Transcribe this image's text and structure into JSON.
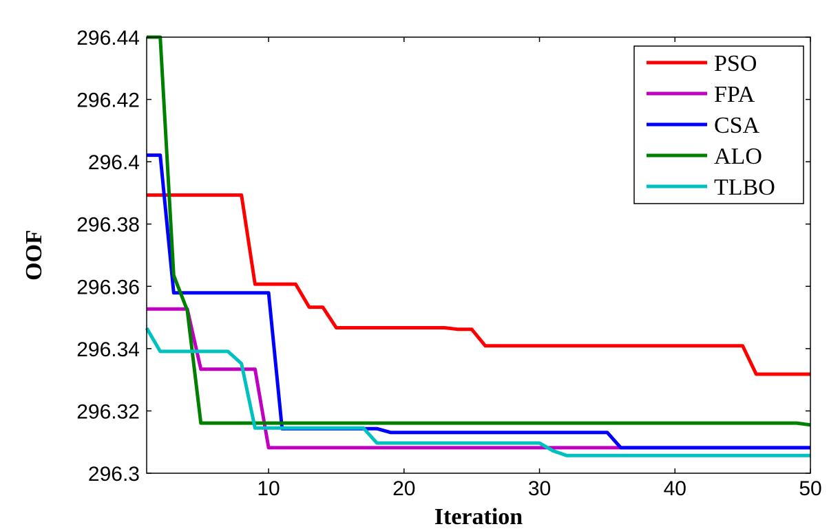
{
  "chart_data": {
    "type": "line",
    "title": "",
    "xlabel": "Iteration",
    "ylabel": "OOF",
    "xlim": [
      1,
      50
    ],
    "ylim": [
      296.3,
      296.44
    ],
    "xticks": [
      10,
      20,
      30,
      40,
      50
    ],
    "xtick_labels": [
      "10",
      "20",
      "30",
      "40",
      "50"
    ],
    "yticks": [
      296.3,
      296.32,
      296.34,
      296.36,
      296.38,
      296.4,
      296.42,
      296.44
    ],
    "ytick_labels": [
      "296.3",
      "296.32",
      "296.34",
      "296.36",
      "296.38",
      "296.4",
      "296.42",
      "296.44"
    ],
    "grid": false,
    "legend_position": "top-right",
    "series": [
      {
        "name": "PSO",
        "color": "#ff0000",
        "x": [
          1,
          8,
          9,
          12,
          13,
          14,
          15,
          23,
          24,
          25,
          26,
          45,
          46,
          50
        ],
        "y": [
          296.3893,
          296.3893,
          296.3607,
          296.3607,
          296.3533,
          296.3533,
          296.3467,
          296.3467,
          296.3462,
          296.3462,
          296.3409,
          296.3409,
          296.3318,
          296.3318
        ]
      },
      {
        "name": "FPA",
        "color": "#c000c0",
        "x": [
          1,
          4,
          5,
          9,
          10,
          50
        ],
        "y": [
          296.3527,
          296.3527,
          296.3334,
          296.3334,
          296.3082,
          296.3082
        ]
      },
      {
        "name": "CSA",
        "color": "#0000ff",
        "x": [
          1,
          2,
          3,
          10,
          11,
          18,
          19,
          35,
          36,
          50
        ],
        "y": [
          296.4021,
          296.4021,
          296.3579,
          296.3579,
          296.3143,
          296.3143,
          296.3131,
          296.3131,
          296.3082,
          296.3082
        ]
      },
      {
        "name": "ALO",
        "color": "#008000",
        "x": [
          1,
          2,
          3,
          4,
          5,
          49,
          50
        ],
        "y": [
          296.44,
          296.44,
          296.3635,
          296.3523,
          296.3161,
          296.3161,
          296.3155
        ]
      },
      {
        "name": "TLBO",
        "color": "#00c0c0",
        "x": [
          1,
          2,
          7,
          8,
          9,
          17,
          18,
          30,
          31,
          32,
          50
        ],
        "y": [
          296.3466,
          296.3391,
          296.3391,
          296.3352,
          296.3145,
          296.3145,
          296.3097,
          296.3097,
          296.3072,
          296.3057,
          296.3057
        ]
      }
    ]
  }
}
